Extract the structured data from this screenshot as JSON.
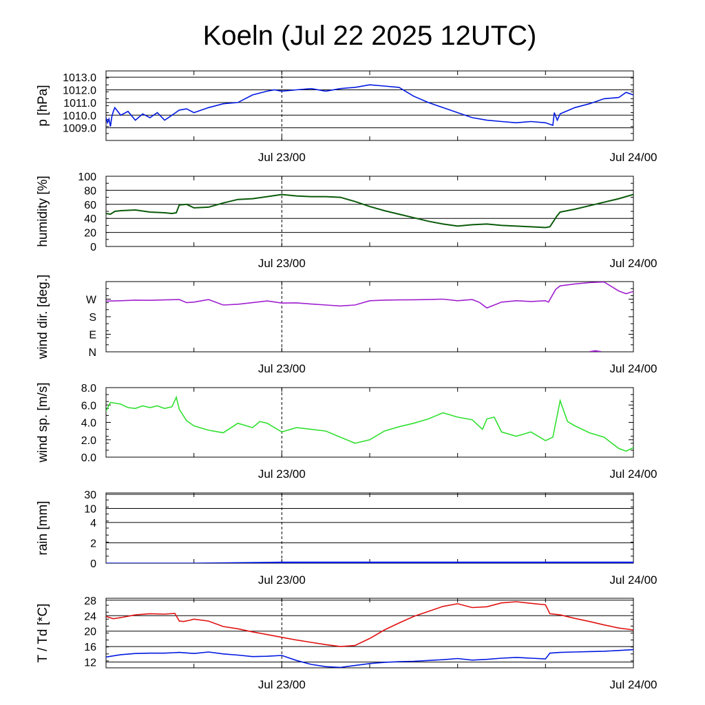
{
  "title": "Koeln (Jul 22 2025 12UTC)",
  "x_time_labels": [
    "Jul 23/00",
    "Jul 24/00"
  ],
  "x_range_hours": [
    0,
    36
  ],
  "colors": {
    "pressure": "#0018e0",
    "humidity": "#0a5a0a",
    "wind_dir": "#a020d0",
    "wind_speed": "#30e030",
    "rain": "#0018e0",
    "temperature": "#e01010",
    "dewpoint": "#0018e0",
    "grid": "#000000"
  },
  "chart_data": [
    {
      "type": "line",
      "id": "pressure",
      "ylabel": "p [hPa]",
      "ylim": [
        1008.0,
        1013.5
      ],
      "yticks": [
        1009.0,
        1010.0,
        1011.0,
        1012.0,
        1013.0
      ],
      "ytick_labels": [
        "1009.0",
        "1010.0",
        "1011.0",
        "1012.0",
        "1013.0"
      ],
      "x": [
        0,
        0.1,
        0.2,
        0.3,
        0.4,
        0.5,
        0.6,
        1.0,
        1.5,
        2.0,
        2.5,
        3.0,
        3.5,
        4.0,
        4.5,
        5.0,
        5.5,
        6.0,
        7.0,
        8.0,
        9.0,
        10.0,
        11.0,
        11.5,
        12.0,
        13.0,
        14.0,
        15.0,
        16.0,
        17.0,
        18.0,
        19.0,
        20.0,
        21.0,
        22.0,
        23.0,
        24.0,
        25.0,
        26.0,
        27.0,
        28.0,
        29.0,
        30.0,
        30.5,
        30.6,
        30.8,
        31.0,
        32.0,
        33.0,
        34.0,
        35.0,
        35.5,
        36.0
      ],
      "values": [
        1009.8,
        1009.4,
        1009.7,
        1009.1,
        1009.9,
        1010.3,
        1010.6,
        1010.0,
        1010.3,
        1009.6,
        1010.1,
        1009.8,
        1010.2,
        1009.6,
        1010.0,
        1010.4,
        1010.5,
        1010.2,
        1010.6,
        1010.9,
        1011.0,
        1011.6,
        1011.9,
        1012.0,
        1011.9,
        1012.0,
        1012.1,
        1011.9,
        1012.1,
        1012.2,
        1012.4,
        1012.3,
        1012.2,
        1011.5,
        1011.0,
        1010.6,
        1010.2,
        1009.8,
        1009.6,
        1009.5,
        1009.4,
        1009.5,
        1009.4,
        1009.2,
        1010.2,
        1009.6,
        1010.1,
        1010.6,
        1010.9,
        1011.3,
        1011.4,
        1011.8,
        1011.6
      ],
      "grid": true
    },
    {
      "type": "line",
      "id": "humidity",
      "ylabel": "humidity [%]",
      "ylim": [
        0,
        100
      ],
      "yticks": [
        0,
        20,
        40,
        60,
        80,
        100
      ],
      "ytick_labels": [
        "0",
        "20",
        "40",
        "60",
        "80",
        "100"
      ],
      "x": [
        0,
        0.3,
        0.6,
        1.0,
        2.0,
        3.0,
        4.0,
        4.5,
        4.8,
        5.0,
        5.5,
        6.0,
        7.0,
        8.0,
        9.0,
        10.0,
        11.0,
        12.0,
        13.0,
        14.0,
        15.0,
        16.0,
        17.0,
        18.0,
        19.0,
        20.0,
        21.0,
        22.0,
        23.0,
        24.0,
        25.0,
        26.0,
        27.0,
        28.0,
        29.0,
        30.0,
        30.3,
        30.8,
        31.0,
        32.0,
        33.0,
        34.0,
        35.0,
        36.0
      ],
      "values": [
        47,
        46,
        50,
        51,
        52,
        49,
        48,
        47,
        48,
        59,
        60,
        55,
        56,
        62,
        67,
        68,
        71,
        74,
        72,
        71,
        71,
        70,
        64,
        57,
        51,
        46,
        41,
        36,
        32,
        29,
        31,
        32,
        30,
        29,
        28,
        27,
        28,
        44,
        49,
        53,
        58,
        63,
        68,
        74
      ],
      "grid": true
    },
    {
      "type": "line",
      "id": "wind_dir",
      "ylabel": "wind dir. [deg.]",
      "ylim": [
        0,
        360
      ],
      "yticks": [
        0,
        90,
        180,
        270
      ],
      "ytick_labels": [
        "N",
        "E",
        "S",
        "W"
      ],
      "x": [
        0,
        1,
        2,
        3,
        4,
        5,
        5.5,
        6,
        7,
        8,
        9,
        10,
        11,
        12,
        13,
        14,
        15,
        16,
        17,
        18,
        19,
        20,
        21,
        22,
        23,
        24,
        25,
        25.5,
        26,
        27,
        28,
        29,
        30,
        30.2,
        30.7,
        31,
        32,
        33,
        34,
        35,
        35.5,
        36
      ],
      "values": [
        260,
        262,
        265,
        264,
        266,
        268,
        252,
        255,
        268,
        240,
        244,
        252,
        261,
        250,
        251,
        245,
        240,
        235,
        240,
        262,
        265,
        266,
        267,
        268,
        270,
        262,
        268,
        253,
        225,
        255,
        262,
        258,
        262,
        255,
        320,
        338,
        348,
        355,
        358,
        312,
        298,
        310
      ],
      "grid": false,
      "secondary_segment": {
        "x": [
          33,
          33.4,
          33.8
        ],
        "values": [
          0,
          5,
          0
        ]
      }
    },
    {
      "type": "line",
      "id": "wind_speed",
      "ylabel": "wind sp. [m/s]",
      "ylim": [
        0,
        8
      ],
      "yticks": [
        0,
        2,
        4,
        6,
        8
      ],
      "ytick_labels": [
        "0.0",
        "2.0",
        "4.0",
        "6.0",
        "8.0"
      ],
      "x": [
        0,
        0.3,
        1,
        1.5,
        2,
        2.5,
        3,
        3.5,
        4,
        4.5,
        4.8,
        5,
        5.5,
        6,
        7,
        8,
        9,
        10,
        10.5,
        11,
        12,
        13,
        14,
        15,
        16,
        17,
        18,
        19,
        20,
        21,
        22,
        23,
        24,
        25,
        25.7,
        26,
        26.5,
        27,
        28,
        29,
        30,
        30.5,
        31,
        31.5,
        32,
        33,
        34,
        35,
        35.5,
        36
      ],
      "values": [
        5.3,
        6.3,
        6.1,
        5.7,
        5.6,
        5.9,
        5.7,
        5.9,
        5.6,
        5.8,
        6.9,
        5.5,
        4.2,
        3.6,
        3.1,
        2.8,
        3.9,
        3.4,
        4.1,
        3.9,
        2.9,
        3.4,
        3.2,
        3.0,
        2.3,
        1.6,
        2.0,
        3.0,
        3.5,
        3.9,
        4.4,
        5.1,
        4.6,
        4.3,
        3.2,
        4.4,
        4.6,
        2.9,
        2.4,
        2.9,
        1.9,
        2.3,
        6.5,
        4.1,
        3.6,
        2.8,
        2.3,
        1.0,
        0.7,
        1.1
      ],
      "grid": false
    },
    {
      "type": "area",
      "id": "rain",
      "ylabel": "rain [mm]",
      "ylim": [
        0,
        30
      ],
      "yticks": [
        0,
        2,
        4,
        10,
        30
      ],
      "ytick_labels": [
        "0",
        "2",
        "4",
        "10",
        "30"
      ],
      "x": [
        0,
        6,
        12,
        18,
        24,
        30,
        36
      ],
      "values": [
        0,
        0,
        0.1,
        0.1,
        0.1,
        0.1,
        0.1
      ],
      "grid": true
    },
    {
      "type": "line",
      "id": "temp_dew",
      "ylabel": "T / Td [*C]",
      "ylim": [
        10.5,
        28.5
      ],
      "yticks": [
        12,
        16,
        20,
        24,
        28
      ],
      "ytick_labels": [
        "12",
        "16",
        "20",
        "24",
        "28"
      ],
      "grid": true,
      "series": [
        {
          "name": "T",
          "x": [
            0,
            0.5,
            1,
            2,
            3,
            4,
            4.7,
            5,
            5.3,
            5.7,
            6,
            7,
            8,
            9,
            10,
            11,
            12,
            13,
            14,
            15,
            16,
            17,
            18,
            19,
            20,
            21,
            22,
            23,
            24,
            25,
            26,
            27,
            28,
            29,
            30,
            30.3,
            31,
            32,
            33,
            34,
            35,
            36
          ],
          "values": [
            23.8,
            23.2,
            23.5,
            24.2,
            24.5,
            24.4,
            24.6,
            22.6,
            22.5,
            22.8,
            23.1,
            22.6,
            21.2,
            20.6,
            19.8,
            19.1,
            18.4,
            17.7,
            17.1,
            16.5,
            16.0,
            16.3,
            18.1,
            20.3,
            22.1,
            23.8,
            25.1,
            26.4,
            27.1,
            26.1,
            26.3,
            27.3,
            27.6,
            27.2,
            26.8,
            24.5,
            24.2,
            23.3,
            22.5,
            21.6,
            20.8,
            20.3
          ]
        },
        {
          "name": "Td",
          "x": [
            0,
            1,
            2,
            3,
            4,
            5,
            6,
            7,
            8,
            9,
            10,
            11,
            12,
            13,
            14,
            15,
            16,
            17,
            18,
            19,
            20,
            21,
            22,
            23,
            24,
            25,
            26,
            27,
            28,
            29,
            30,
            30.3,
            31,
            32,
            33,
            34,
            35,
            36
          ],
          "values": [
            13.3,
            13.9,
            14.2,
            14.3,
            14.3,
            14.5,
            14.2,
            14.6,
            14.1,
            13.8,
            13.4,
            13.5,
            13.7,
            12.4,
            11.4,
            10.8,
            10.6,
            11.1,
            11.6,
            11.9,
            12.1,
            12.2,
            12.4,
            12.6,
            12.9,
            12.5,
            12.7,
            13.0,
            13.2,
            13.0,
            12.8,
            14.3,
            14.5,
            14.6,
            14.7,
            14.8,
            15.0,
            15.2
          ]
        }
      ]
    }
  ]
}
